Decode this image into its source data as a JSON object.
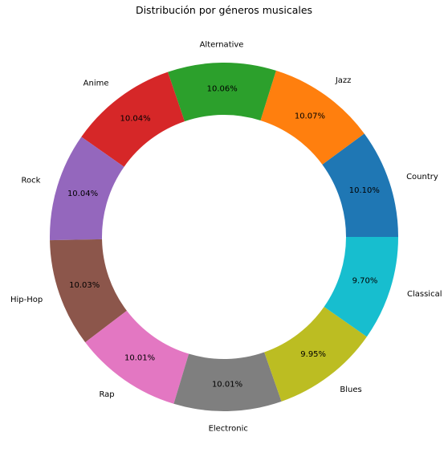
{
  "chart_data": {
    "type": "pie",
    "variant": "donut",
    "title": "Distribución por géneros musicales",
    "categories": [
      "Country",
      "Jazz",
      "Alternative",
      "Anime",
      "Rock",
      "Hip-Hop",
      "Rap",
      "Electronic",
      "Blues",
      "Classical"
    ],
    "values": [
      10.1,
      10.07,
      10.06,
      10.04,
      10.04,
      10.03,
      10.01,
      10.01,
      9.95,
      9.7
    ],
    "value_labels": [
      "10.10%",
      "10.07%",
      "10.06%",
      "10.04%",
      "10.04%",
      "10.03%",
      "10.01%",
      "10.01%",
      "9.95%",
      "9.70%"
    ],
    "colors": [
      "#1f77b4",
      "#ff7f0e",
      "#2ca02c",
      "#d62728",
      "#9467bd",
      "#8c564b",
      "#e377c2",
      "#7f7f7f",
      "#bcbd22",
      "#17becf"
    ],
    "start_angle_deg": 0,
    "direction": "counterclockwise",
    "legend": "none"
  }
}
